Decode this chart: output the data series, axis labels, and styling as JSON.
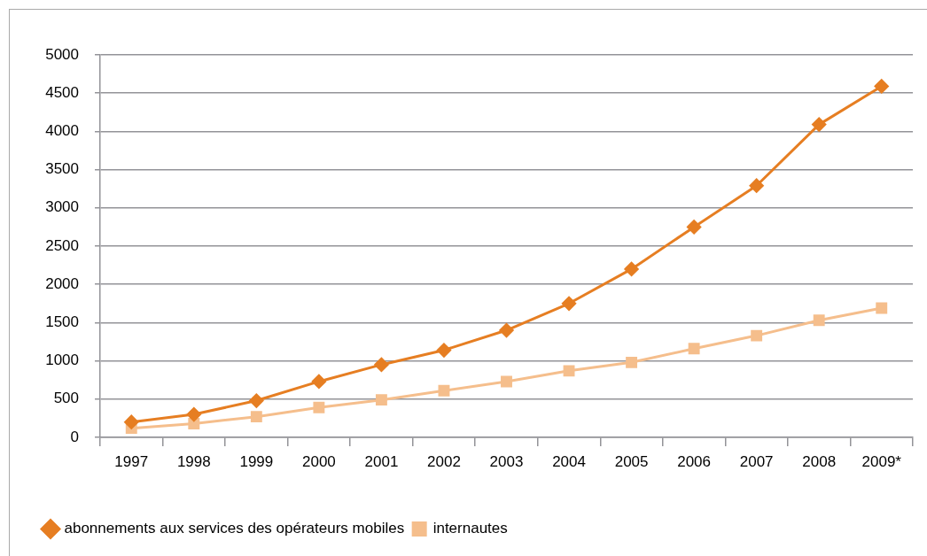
{
  "chart_data": {
    "type": "line",
    "categories": [
      "1997",
      "1998",
      "1999",
      "2000",
      "2001",
      "2002",
      "2003",
      "2004",
      "2005",
      "2006",
      "2007",
      "2008",
      "2009*"
    ],
    "series": [
      {
        "name": "abonnements aux services des opérateurs mobiles",
        "color": "#e67e22",
        "marker": "diamond",
        "values": [
          200,
          300,
          480,
          730,
          950,
          1140,
          1400,
          1750,
          2200,
          2750,
          3290,
          4090,
          4590
        ]
      },
      {
        "name": "internautes",
        "color": "#f5be8c",
        "marker": "square",
        "values": [
          120,
          180,
          270,
          390,
          490,
          610,
          730,
          870,
          980,
          1160,
          1330,
          1530,
          1690
        ]
      }
    ],
    "ylim": [
      0,
      5000
    ],
    "yticks": [
      0,
      500,
      1000,
      1500,
      2000,
      2500,
      3000,
      3500,
      4000,
      4500,
      5000
    ],
    "grid": "y",
    "legend": "bottom",
    "line_style": "solid"
  }
}
